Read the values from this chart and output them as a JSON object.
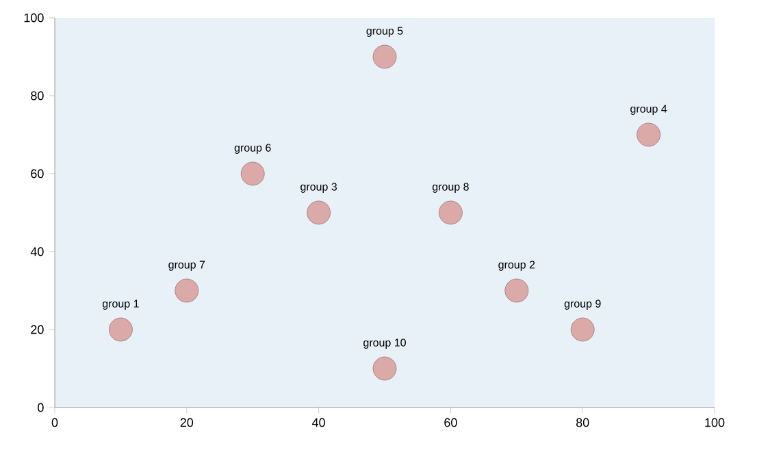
{
  "chart_data": {
    "type": "bubble",
    "x": [
      10,
      70,
      40,
      90,
      50,
      30,
      20,
      60,
      80,
      50
    ],
    "series": [
      {
        "color": "#dca9a9",
        "values": [
          20,
          30,
          50,
          70,
          90,
          60,
          30,
          50,
          20,
          10
        ],
        "sizes": [
          1,
          1,
          1,
          1,
          1,
          1,
          1,
          1,
          1,
          1
        ]
      }
    ],
    "xlim": [
      0,
      100
    ],
    "xticks": [
      0,
      20,
      40,
      60,
      80,
      100
    ],
    "ylim": [
      0,
      100
    ],
    "yticks": [
      0,
      20,
      40,
      60,
      80,
      100
    ],
    "annotations": [
      {
        "text": "group 1",
        "x": 10,
        "y": 20
      },
      {
        "text": "group 2",
        "x": 70,
        "y": 30
      },
      {
        "text": "group 3",
        "x": 40,
        "y": 50
      },
      {
        "text": "group 4",
        "x": 90,
        "y": 70
      },
      {
        "text": "group 5",
        "x": 50,
        "y": 90
      },
      {
        "text": "group 6",
        "x": 30,
        "y": 60
      },
      {
        "text": "group 7",
        "x": 20,
        "y": 30
      },
      {
        "text": "group 8",
        "x": 60,
        "y": 50
      },
      {
        "text": "group 9",
        "x": 80,
        "y": 20
      },
      {
        "text": "group 10",
        "x": 50,
        "y": 10
      }
    ]
  }
}
